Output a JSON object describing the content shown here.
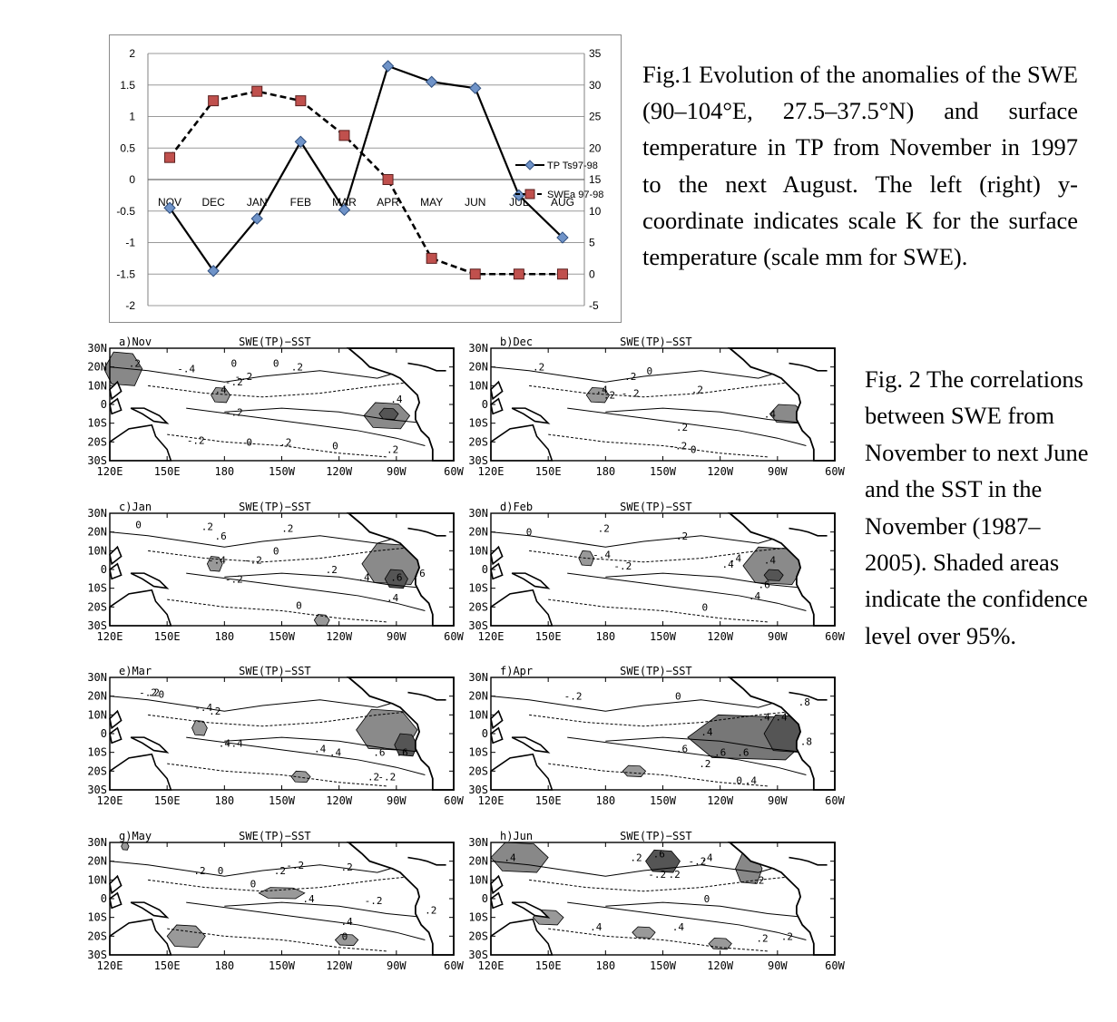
{
  "fig1": {
    "caption": "Fig.1 Evolution of the anomalies of the SWE (90–104°E, 27.5–37.5°N) and surface temperature in TP from November in 1997 to the next August. The left (right) y-coordinate indicates scale K for the surface temperature (scale mm for SWE).",
    "legend": {
      "ts": "TP Ts97-98",
      "swe": "SWEa 97-98"
    },
    "left_ticks": [
      "2",
      "1.5",
      "1",
      "0.5",
      "0",
      "-0.5",
      "-1",
      "-1.5",
      "-2"
    ],
    "right_ticks": [
      "35",
      "30",
      "25",
      "20",
      "15",
      "10",
      "5",
      "0",
      "-5"
    ],
    "colors": {
      "ts_line": "#000000",
      "ts_marker": "#6f93c8",
      "swe_marker": "#c0504d",
      "grid": "#9a9a9a"
    }
  },
  "chart_data": {
    "type": "line",
    "categories": [
      "NOV",
      "DEC",
      "JAN",
      "FEB",
      "MAR",
      "APR",
      "MAY",
      "JUN",
      "JUL",
      "AUG"
    ],
    "series": [
      {
        "name": "TP Ts97-98",
        "axis": "left",
        "values": [
          -0.45,
          -1.45,
          -0.62,
          0.6,
          -0.48,
          1.8,
          1.55,
          1.45,
          -0.25,
          -0.92
        ]
      },
      {
        "name": "SWEa 97-98",
        "axis": "right",
        "values": [
          18.5,
          27.5,
          29,
          27.5,
          22,
          15,
          2.5,
          0,
          0,
          0
        ]
      }
    ],
    "ylim_left": [
      -2,
      2
    ],
    "ylim_right": [
      -5,
      35
    ],
    "grid": "horizontal"
  },
  "fig2": {
    "caption": "Fig. 2 The correlations between SWE from November to next June and the SST in the November (1987–2005). Shaded areas indicate the confidence level over 95%.",
    "title": "SWE(TP)−SST",
    "lat_ticks": [
      "30N",
      "20N",
      "10N",
      "0",
      "10S",
      "20S",
      "30S"
    ],
    "lon_ticks": [
      "120E",
      "150E",
      "180",
      "150W",
      "120W",
      "90W",
      "60W"
    ],
    "panels": [
      {
        "id": "a",
        "label": "a)Nov",
        "labels": [
          ".2",
          "-.4",
          "0",
          "-.2",
          "0",
          ".2",
          "-.2",
          ".4",
          ".4",
          "-.2",
          "0",
          ".2",
          "0",
          ".2",
          "-.2"
        ]
      },
      {
        "id": "b",
        "label": "b)Dec",
        "labels": [
          ".2",
          ".2",
          "0",
          "-.2",
          ".4",
          ".2",
          ".2",
          ".4",
          ".2",
          "-.2",
          "0"
        ]
      },
      {
        "id": "c",
        "label": "c)Jan",
        "labels": [
          "0",
          ".2",
          "-.4",
          ".2",
          "-.2",
          "0",
          ".2",
          ".4",
          ".6",
          ".6",
          ".6",
          ".4",
          "-.2",
          "0"
        ]
      },
      {
        "id": "d",
        "label": "d)Feb",
        "labels": [
          "0",
          ".2",
          "-.4",
          ".4",
          "-.2",
          ".2",
          ".4",
          ".4",
          ".6",
          ".4",
          "0"
        ]
      },
      {
        "id": "e",
        "label": "e)Mar",
        "labels": [
          ".2",
          "-.2",
          "0",
          "-.4",
          ".2",
          "-.4",
          ".4",
          ".4",
          ".6",
          ".6",
          ".2",
          "-.2",
          ".4"
        ]
      },
      {
        "id": "f",
        "label": "f)Apr",
        "labels": [
          "0",
          "-.2",
          ".4",
          ".4",
          ".4",
          ".6",
          ".6",
          ".6",
          ".8",
          ".8",
          "0",
          ".4",
          ".2"
        ]
      },
      {
        "id": "g",
        "label": "g)May",
        "labels": [
          ".2",
          "0",
          ".2",
          "0",
          "-.2",
          ".4",
          ".2",
          ".4",
          "-.2",
          ".2",
          "0"
        ]
      },
      {
        "id": "h",
        "label": "h)Jun",
        "labels": [
          ".4",
          ".2",
          ".6",
          ".4",
          "-.2",
          ".2",
          "0",
          ".4",
          ".4",
          ".2",
          "-.2",
          ".2",
          ".2"
        ]
      }
    ]
  }
}
